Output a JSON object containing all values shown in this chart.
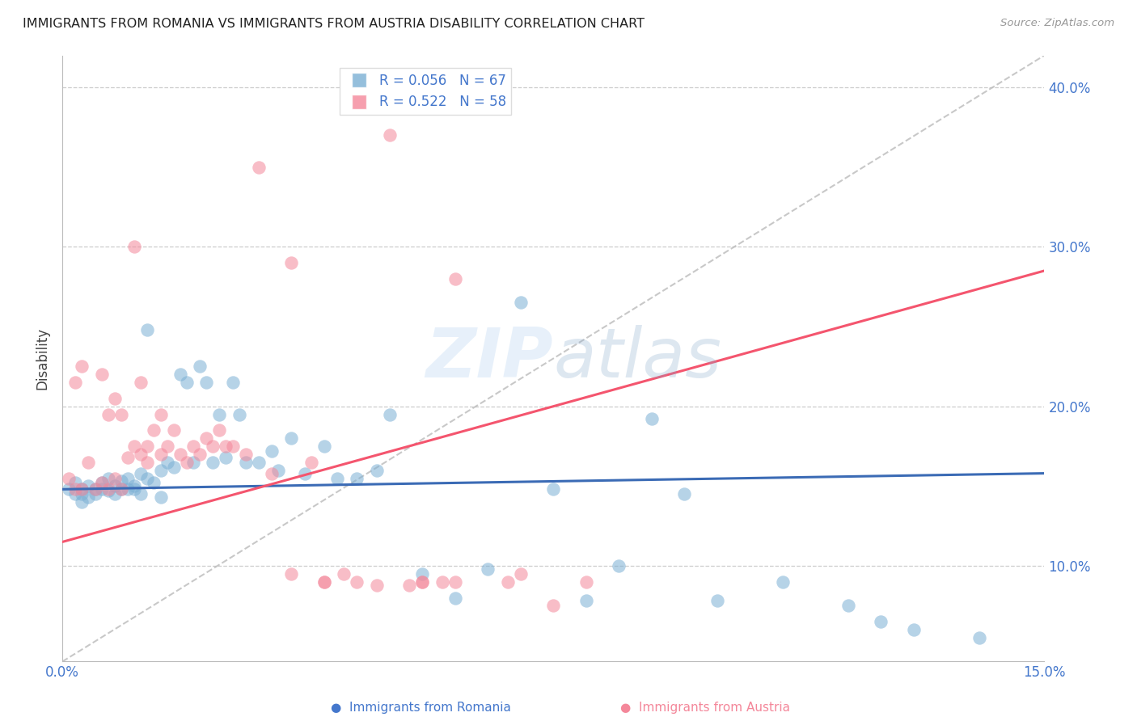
{
  "title": "IMMIGRANTS FROM ROMANIA VS IMMIGRANTS FROM AUSTRIA DISABILITY CORRELATION CHART",
  "source": "Source: ZipAtlas.com",
  "ylabel_label": "Disability",
  "xlim": [
    0.0,
    0.15
  ],
  "ylim": [
    0.04,
    0.42
  ],
  "x_ticks": [
    0.0,
    0.05,
    0.1,
    0.15
  ],
  "x_tick_labels": [
    "0.0%",
    "",
    "",
    "15.0%"
  ],
  "y_ticks": [
    0.1,
    0.2,
    0.3,
    0.4
  ],
  "y_tick_labels": [
    "10.0%",
    "20.0%",
    "30.0%",
    "40.0%"
  ],
  "watermark_zip": "ZIP",
  "watermark_atlas": "atlas",
  "romania_R": 0.056,
  "romania_N": 67,
  "austria_R": 0.522,
  "austria_N": 58,
  "color_romania": "#7BAFD4",
  "color_austria": "#F4879A",
  "color_romania_line": "#3B6BB5",
  "color_austria_line": "#F4556E",
  "color_diagonal": "#BBBBBB",
  "romania_line_x": [
    0.0,
    0.15
  ],
  "romania_line_y": [
    0.148,
    0.158
  ],
  "austria_line_x": [
    0.0,
    0.15
  ],
  "austria_line_y": [
    0.115,
    0.285
  ],
  "romania_scatter_x": [
    0.001,
    0.002,
    0.002,
    0.003,
    0.003,
    0.003,
    0.004,
    0.004,
    0.005,
    0.005,
    0.006,
    0.006,
    0.007,
    0.007,
    0.008,
    0.008,
    0.009,
    0.009,
    0.01,
    0.01,
    0.011,
    0.011,
    0.012,
    0.012,
    0.013,
    0.013,
    0.014,
    0.015,
    0.015,
    0.016,
    0.017,
    0.018,
    0.019,
    0.02,
    0.021,
    0.022,
    0.023,
    0.024,
    0.025,
    0.026,
    0.027,
    0.028,
    0.03,
    0.032,
    0.033,
    0.035,
    0.037,
    0.04,
    0.042,
    0.045,
    0.048,
    0.05,
    0.055,
    0.06,
    0.065,
    0.07,
    0.075,
    0.08,
    0.085,
    0.09,
    0.095,
    0.1,
    0.11,
    0.12,
    0.125,
    0.13,
    0.14
  ],
  "romania_scatter_y": [
    0.148,
    0.145,
    0.152,
    0.148,
    0.145,
    0.14,
    0.15,
    0.143,
    0.148,
    0.145,
    0.152,
    0.148,
    0.155,
    0.147,
    0.15,
    0.145,
    0.153,
    0.148,
    0.155,
    0.148,
    0.15,
    0.148,
    0.158,
    0.145,
    0.155,
    0.248,
    0.152,
    0.16,
    0.143,
    0.165,
    0.162,
    0.22,
    0.215,
    0.165,
    0.225,
    0.215,
    0.165,
    0.195,
    0.168,
    0.215,
    0.195,
    0.165,
    0.165,
    0.172,
    0.16,
    0.18,
    0.158,
    0.175,
    0.155,
    0.155,
    0.16,
    0.195,
    0.095,
    0.08,
    0.098,
    0.265,
    0.148,
    0.078,
    0.1,
    0.192,
    0.145,
    0.078,
    0.09,
    0.075,
    0.065,
    0.06,
    0.055
  ],
  "austria_scatter_x": [
    0.001,
    0.002,
    0.002,
    0.003,
    0.003,
    0.004,
    0.005,
    0.006,
    0.006,
    0.007,
    0.007,
    0.008,
    0.008,
    0.009,
    0.009,
    0.01,
    0.011,
    0.011,
    0.012,
    0.012,
    0.013,
    0.013,
    0.014,
    0.015,
    0.015,
    0.016,
    0.017,
    0.018,
    0.019,
    0.02,
    0.021,
    0.022,
    0.023,
    0.024,
    0.025,
    0.026,
    0.028,
    0.03,
    0.032,
    0.035,
    0.038,
    0.04,
    0.043,
    0.045,
    0.048,
    0.05,
    0.053,
    0.055,
    0.058,
    0.06,
    0.035,
    0.04,
    0.055,
    0.06,
    0.068,
    0.07,
    0.075,
    0.08
  ],
  "austria_scatter_y": [
    0.155,
    0.148,
    0.215,
    0.148,
    0.225,
    0.165,
    0.148,
    0.152,
    0.22,
    0.148,
    0.195,
    0.155,
    0.205,
    0.148,
    0.195,
    0.168,
    0.175,
    0.3,
    0.17,
    0.215,
    0.175,
    0.165,
    0.185,
    0.17,
    0.195,
    0.175,
    0.185,
    0.17,
    0.165,
    0.175,
    0.17,
    0.18,
    0.175,
    0.185,
    0.175,
    0.175,
    0.17,
    0.35,
    0.158,
    0.29,
    0.165,
    0.09,
    0.095,
    0.09,
    0.088,
    0.37,
    0.088,
    0.09,
    0.09,
    0.28,
    0.095,
    0.09,
    0.09,
    0.09,
    0.09,
    0.095,
    0.075,
    0.09
  ]
}
